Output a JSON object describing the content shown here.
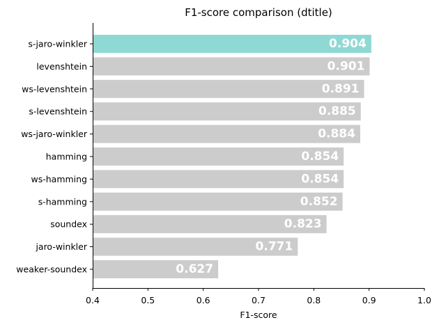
{
  "chart_data": {
    "type": "bar",
    "orientation": "horizontal",
    "title": "F1-score comparison (dtitle)",
    "xlabel": "F1-score",
    "ylabel": "",
    "xlim": [
      0.4,
      1.0
    ],
    "xticks": [
      "0.4",
      "0.5",
      "0.6",
      "0.7",
      "0.8",
      "0.9",
      "1.0"
    ],
    "grid": false,
    "categories": [
      "s-jaro-winkler",
      "levenshtein",
      "ws-levenshtein",
      "s-levenshtein",
      "ws-jaro-winkler",
      "hamming",
      "ws-hamming",
      "s-hamming",
      "soundex",
      "jaro-winkler",
      "weaker-soundex"
    ],
    "values": [
      0.904,
      0.901,
      0.891,
      0.885,
      0.884,
      0.854,
      0.854,
      0.852,
      0.823,
      0.771,
      0.627
    ],
    "value_labels": [
      "0.904",
      "0.901",
      "0.891",
      "0.885",
      "0.884",
      "0.854",
      "0.854",
      "0.852",
      "0.823",
      "0.771",
      "0.627"
    ],
    "highlight_index": 0,
    "colors": {
      "highlight": "#8fd9d4",
      "default": "#cccccc"
    }
  }
}
